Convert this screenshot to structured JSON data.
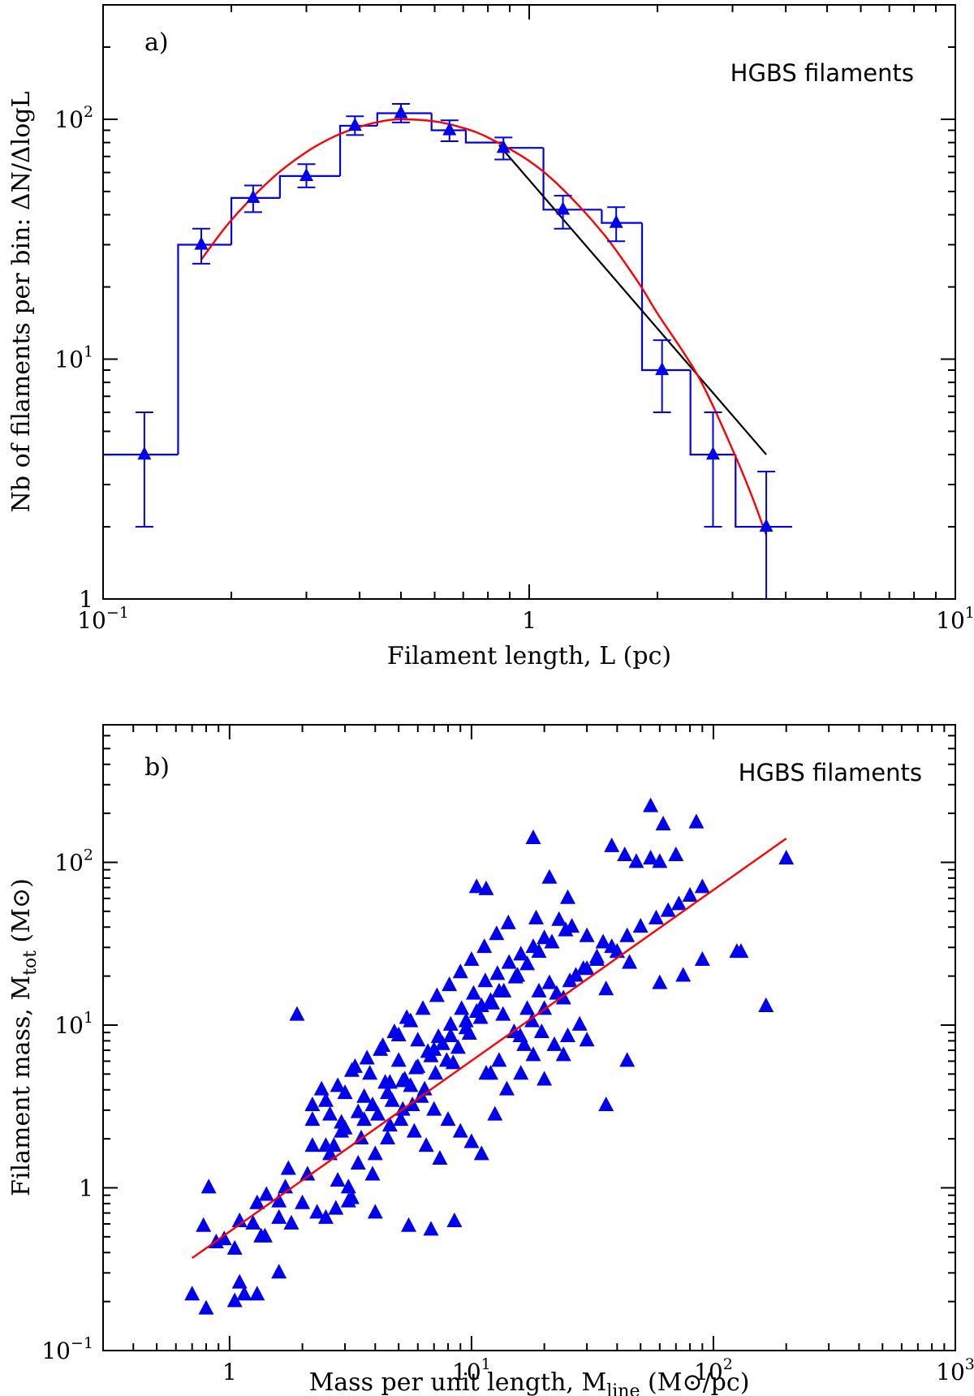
{
  "chart_data": [
    {
      "type": "line",
      "panel_label": "a)",
      "legend_text": "HGBS filaments",
      "xlabel": "Filament length, L (pc)",
      "ylabel": "Nb of filaments per bin: ΔN/ΔlogL",
      "xscale": "log",
      "yscale": "log",
      "xlim": [
        0.1,
        10
      ],
      "ylim": [
        1,
        300
      ],
      "x_ticks": [
        {
          "value": 0.1,
          "base": "10",
          "exp": "−1"
        },
        {
          "value": 1,
          "base": "1",
          "exp": ""
        },
        {
          "value": 10,
          "base": "10",
          "exp": "1"
        }
      ],
      "y_ticks": [
        {
          "value": 1,
          "base": "1",
          "exp": ""
        },
        {
          "value": 10,
          "base": "10",
          "exp": "1"
        },
        {
          "value": 100,
          "base": "10",
          "exp": "2"
        }
      ],
      "histogram": {
        "name": "Histogram",
        "color": "#0000ee",
        "edges": [
          0.1,
          0.15,
          0.2,
          0.26,
          0.36,
          0.44,
          0.59,
          0.71,
          0.87,
          1.08,
          1.48,
          1.84,
          2.39,
          3.05,
          4.14
        ],
        "counts": [
          4,
          30,
          47,
          58,
          94,
          106,
          90,
          80,
          76,
          42,
          37,
          9,
          4,
          2
        ]
      },
      "points": {
        "name": "Data points with errors",
        "color": "#0000ee",
        "x": [
          0.125,
          0.17,
          0.225,
          0.3,
          0.39,
          0.5,
          0.65,
          0.87,
          1.2,
          1.6,
          2.05,
          2.7,
          3.6
        ],
        "y": [
          4,
          30,
          47,
          58,
          94,
          106,
          90,
          76,
          42,
          37,
          9,
          4,
          2
        ],
        "yerr_low": [
          2,
          25,
          41,
          52,
          86,
          97,
          81,
          68,
          35,
          31,
          6,
          2,
          0.5
        ],
        "yerr_high": [
          6,
          35,
          53,
          65,
          103,
          116,
          99,
          84,
          48,
          43,
          12,
          6,
          3.4
        ]
      },
      "fit_curve": {
        "name": "Log-normal fit",
        "color": "#ff0000",
        "x": [
          0.17,
          0.2,
          0.25,
          0.3,
          0.35,
          0.4,
          0.45,
          0.5,
          0.6,
          0.7,
          0.8,
          1.0,
          1.2,
          1.5,
          1.8,
          2.0,
          2.5,
          3.0,
          3.3,
          3.6
        ],
        "y": [
          26,
          38,
          57,
          73,
          85,
          93,
          98,
          100,
          98,
          92,
          84,
          67,
          51,
          33,
          21,
          15.5,
          8.4,
          4.2,
          2.8,
          1.85
        ]
      },
      "power_law": {
        "name": "Power-law fit",
        "color": "#000000",
        "x": [
          0.85,
          3.6
        ],
        "y": [
          78,
          4
        ]
      }
    },
    {
      "type": "scatter",
      "panel_label": "b)",
      "legend_text": "HGBS filaments",
      "xlabel_main": "Mass per unit length, M",
      "xlabel_sub": "line",
      "xlabel_tail": " (M⊙/pc)",
      "ylabel_main": "Filament mass, M",
      "ylabel_sub": "tot",
      "ylabel_tail": " (M⊙)",
      "xscale": "log",
      "yscale": "log",
      "xlim": [
        0.3,
        1000
      ],
      "ylim": [
        0.1,
        700
      ],
      "x_ticks": [
        {
          "value": 1,
          "base": "1",
          "exp": ""
        },
        {
          "value": 10,
          "base": "10",
          "exp": "1"
        },
        {
          "value": 100,
          "base": "10",
          "exp": "2"
        },
        {
          "value": 1000,
          "base": "10",
          "exp": "3"
        }
      ],
      "y_ticks": [
        {
          "value": 0.1,
          "base": "10",
          "exp": "−1"
        },
        {
          "value": 1,
          "base": "1",
          "exp": ""
        },
        {
          "value": 10,
          "base": "10",
          "exp": "1"
        },
        {
          "value": 100,
          "base": "10",
          "exp": "2"
        }
      ],
      "scatter": {
        "name": "HGBS filaments",
        "color": "#0000ee",
        "x": [
          0.7,
          0.8,
          0.82,
          0.78,
          0.88,
          0.95,
          1.05,
          1.1,
          1.05,
          1.1,
          1.15,
          1.3,
          1.4,
          1.42,
          1.6,
          1.6,
          1.7,
          1.8,
          1.75,
          2.0,
          2.1,
          2.2,
          2.3,
          2.5,
          2.6,
          2.8,
          3.1,
          3.2,
          3.4,
          2.9,
          2.6,
          2.2,
          2.4,
          2.9,
          3.0,
          3.5,
          4.0,
          4.6,
          5.2,
          5.8,
          6.5,
          7.4,
          3.8,
          4.4,
          5.0,
          5.6,
          6.2,
          7.0,
          8.0,
          9.0,
          10.0,
          11.0,
          12.5,
          14.0,
          16.0,
          18.0,
          20.0,
          22.0,
          25.0,
          28.0,
          4.2,
          4.8,
          5.4,
          6.0,
          6.8,
          7.6,
          8.4,
          9.5,
          10.5,
          12.0,
          13.5,
          15.0,
          17.0,
          19.0,
          21.0,
          24.0,
          27.0,
          30.0,
          33.0,
          36.0,
          40.0,
          3.3,
          3.6,
          4.1,
          4.7,
          5.3,
          5.9,
          6.6,
          7.3,
          8.2,
          9.1,
          10.2,
          11.4,
          12.8,
          14.3,
          16.0,
          18.0,
          20.0,
          2.7,
          3.0,
          3.4,
          3.9,
          4.5,
          5.1,
          5.7,
          6.4,
          7.1,
          7.9,
          8.8,
          9.8,
          10.9,
          12.2,
          13.6,
          15.2,
          17.0,
          19.0,
          21.5,
          24.5,
          2.2,
          2.5,
          2.8,
          3.2,
          3.7,
          4.3,
          5.0,
          5.6,
          6.3,
          7.2,
          8.1,
          9.0,
          10.0,
          11.3,
          12.7,
          14.2,
          15.9,
          17.8,
          20.0,
          22.5,
          25.5,
          29.0,
          33.0,
          38.0,
          44.0,
          50.0,
          58.0,
          65.0,
          72.0,
          80.0,
          90.0,
          60.0,
          55.0,
          70.0,
          75.0,
          45.0,
          40.0,
          35.0,
          30.0,
          26.0,
          23.0,
          18.5,
          15.5,
          13.0,
          11.0,
          9.5,
          8.2,
          7.0,
          6.0,
          5.2,
          4.5,
          3.9,
          10.5,
          11.5,
          18.0,
          21.0,
          25.0,
          38.0,
          43.0,
          48.0,
          55.0,
          62.0,
          85.0,
          125.0,
          130.0,
          165.0,
          200.0,
          60.0,
          90.0,
          36.0,
          30.0,
          24.0,
          12.0,
          8.5,
          6.8,
          5.5,
          4.0,
          3.1,
          2.75,
          1.9,
          1.6,
          1.35,
          1.25,
          1.3,
          2.5,
          3.6,
          4.6,
          11.5,
          13.0,
          16.5,
          19.5,
          44.0
        ],
        "y": [
          0.22,
          0.18,
          1.0,
          0.58,
          0.46,
          0.48,
          0.2,
          0.62,
          0.42,
          0.26,
          0.22,
          0.22,
          0.5,
          0.9,
          0.65,
          0.82,
          1.0,
          0.6,
          1.3,
          0.8,
          1.2,
          1.8,
          0.7,
          0.65,
          1.6,
          1.1,
          1.0,
          0.86,
          1.4,
          2.2,
          2.8,
          3.2,
          4.0,
          2.5,
          3.8,
          2.0,
          1.6,
          2.4,
          3.0,
          2.2,
          1.8,
          1.5,
          5.0,
          4.4,
          6.0,
          4.2,
          3.6,
          3.0,
          2.6,
          2.2,
          1.9,
          1.6,
          2.8,
          4.0,
          5.0,
          6.5,
          4.6,
          7.5,
          8.5,
          10.0,
          7.0,
          9.0,
          11.0,
          8.0,
          6.4,
          7.6,
          5.8,
          9.5,
          12.0,
          14.0,
          11.5,
          9.0,
          12.5,
          16.0,
          18.0,
          14.5,
          20.0,
          22.0,
          25.0,
          16.5,
          28.0,
          5.5,
          3.6,
          2.8,
          3.4,
          4.6,
          5.4,
          6.8,
          8.4,
          10.0,
          12.5,
          15.5,
          18.5,
          20.5,
          24.0,
          27.0,
          30.0,
          34.0,
          1.8,
          2.3,
          2.9,
          1.2,
          2.0,
          2.6,
          3.2,
          4.0,
          5.0,
          6.0,
          7.2,
          8.8,
          11.0,
          13.5,
          16.0,
          19.5,
          23.5,
          28.0,
          32.0,
          38.0,
          2.6,
          3.4,
          4.2,
          5.2,
          6.2,
          7.4,
          8.6,
          10.5,
          12.5,
          15.0,
          17.5,
          21.0,
          25.0,
          30.0,
          36.0,
          42.0,
          8.5,
          10.5,
          12.5,
          15.5,
          18.5,
          22.0,
          26.0,
          30.0,
          35.0,
          40.0,
          45.0,
          50.0,
          55.0,
          62.0,
          70.0,
          100.0,
          105.0,
          110.0,
          20.0,
          24.0,
          28.0,
          32.0,
          35.0,
          40.0,
          44.0,
          45.0,
          20.0,
          16.0,
          13.0,
          10.5,
          8.5,
          7.0,
          5.5,
          4.5,
          3.8,
          3.2,
          70.0,
          68.0,
          140.0,
          80.0,
          60.0,
          125.0,
          110.0,
          100.0,
          220.0,
          170.0,
          175.0,
          28.0,
          28.0,
          13.0,
          105.0,
          18.0,
          25.0,
          3.2,
          8.0,
          6.5,
          5.0,
          0.62,
          0.55,
          0.58,
          0.7,
          0.82,
          0.74,
          11.5,
          0.3,
          0.5,
          0.6,
          0.8,
          1.8,
          2.6,
          4.4,
          5.0,
          6.0,
          7.5,
          9.0,
          6.0
        ],
        "marker": "triangle"
      },
      "fit_line": {
        "name": "Power-law fit",
        "color": "#ff0000",
        "x": [
          0.7,
          200
        ],
        "y": [
          0.37,
          140
        ]
      }
    }
  ]
}
